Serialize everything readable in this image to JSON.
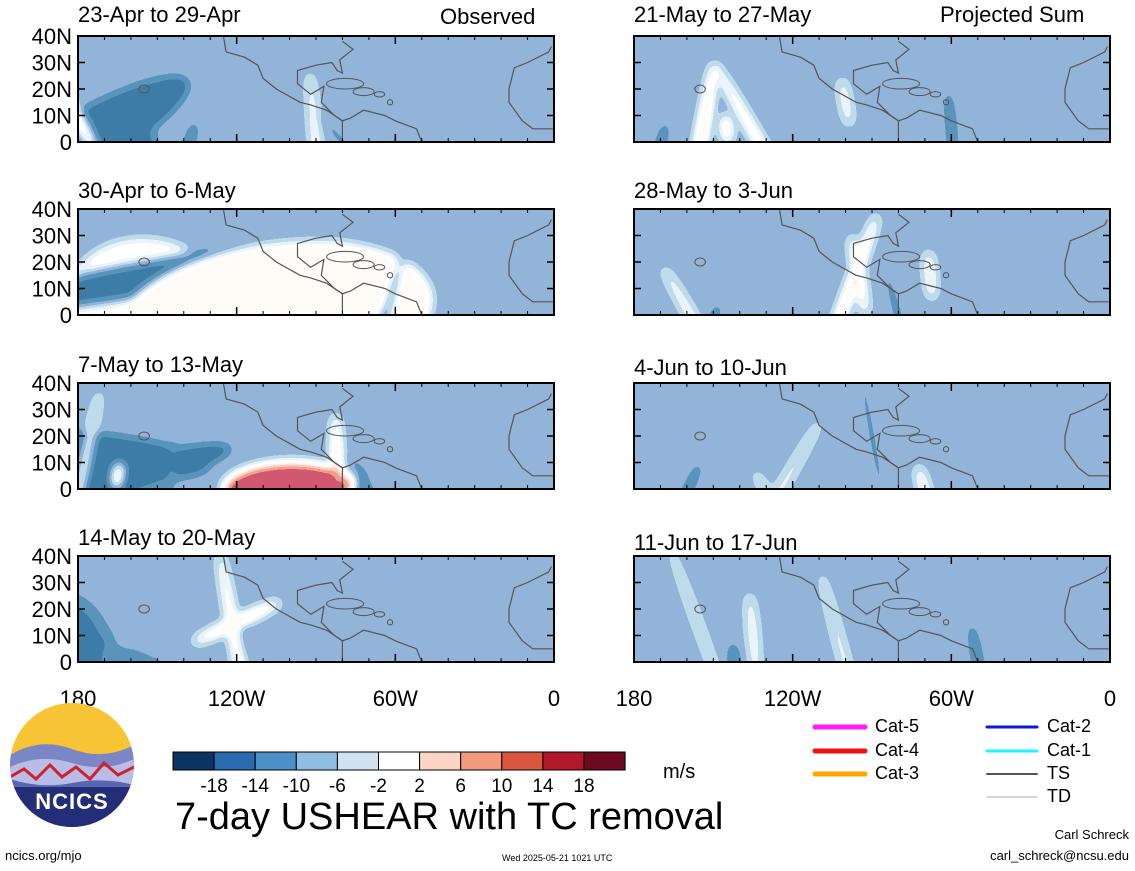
{
  "chart_data": {
    "type": "heatmap",
    "title": "7-day USHEAR with TC removal",
    "units": "m/s",
    "colorbar": {
      "tick_labels": [
        "-18",
        "-14",
        "-10",
        "-6",
        "-2",
        "2",
        "6",
        "10",
        "14",
        "18"
      ],
      "colors": [
        "#0b3463",
        "#2a6aaf",
        "#4a8fc8",
        "#8fbfe0",
        "#cfe3f1",
        "#ffffff",
        "#fbd6c4",
        "#f19a7d",
        "#d9573f",
        "#b0182b",
        "#6e0a1f"
      ]
    },
    "lon_ticks": [
      "180",
      "120W",
      "60W",
      "0"
    ],
    "lat_ticks": [
      "40N",
      "30N",
      "20N",
      "10N",
      "0"
    ],
    "columns": [
      {
        "label": "Observed",
        "panels": [
          {
            "period": "23-Apr to 29-Apr",
            "blobs": [
              [
                150,
                -1,
                48,
                22,
                0,
                -14
              ],
              [
                -1,
                0,
                30,
                22,
                0,
                -10
              ],
              [
                65,
                14,
                0,
                40,
                16,
                -8
              ],
              [
                15,
                -1,
                0,
                18,
                42,
                -12
              ],
              [
                -30,
                15,
                0,
                44,
                -4,
                18
              ],
              [
                -20,
                -1,
                0,
                100,
                0,
                -6
              ],
              [
                -5,
                -1,
                0,
                55,
                90,
                10
              ],
              [
                -40,
                0,
                0,
                30,
                100,
                -5
              ]
            ]
          },
          {
            "period": "30-Apr to 6-May",
            "blobs": [
              [
                25,
                -1,
                42,
                10,
                35,
                22
              ],
              [
                20,
                5,
                0,
                34,
                66,
                -14
              ],
              [
                10,
                -1,
                0,
                22,
                105,
                -8
              ],
              [
                25,
                -1,
                35,
                56,
                30,
                10
              ],
              [
                -10,
                14,
                70,
                14,
                28,
                -10
              ],
              [
                -8,
                -1,
                60,
                55,
                74,
                12
              ],
              [
                15,
                5,
                0,
                37,
                118,
                -8
              ],
              [
                20,
                -1,
                0,
                10,
                115,
                -6
              ]
            ]
          },
          {
            "period": "7-May to 13-May",
            "blobs": [
              [
                -15,
                0,
                60,
                14,
                0,
                -14
              ],
              [
                5,
                13,
                50,
                18,
                0,
                -12
              ],
              [
                -1,
                0,
                25,
                20,
                80,
                20
              ],
              [
                25,
                -1,
                0,
                18,
                105,
                -10
              ],
              [
                -1,
                -1,
                0,
                58,
                98,
                18
              ],
              [
                10,
                5,
                0,
                10,
                15,
                16
              ],
              [
                5,
                5,
                0,
                28,
                35,
                -6
              ],
              [
                -25,
                -1,
                0,
                30,
                110,
                -8
              ],
              [
                12,
                -2,
                0,
                80,
                0,
                10
              ]
            ]
          },
          {
            "period": "14-May to 20-May",
            "blobs": [
              [
                50,
                -1,
                35,
                15,
                0,
                -12
              ],
              [
                30,
                -1,
                100,
                5,
                26,
                12
              ],
              [
                65,
                15,
                0,
                36,
                60,
                16
              ],
              [
                5,
                5,
                0,
                18,
                62,
                -6
              ],
              [
                -10,
                5,
                0,
                74,
                60,
                14
              ],
              [
                20,
                -1,
                70,
                26,
                0,
                -6
              ],
              [
                -16,
                6,
                20,
                42,
                -8,
                -8
              ],
              [
                -30,
                -1,
                0,
                42,
                18,
                -8
              ]
            ]
          }
        ]
      },
      {
        "label": "Projected Sum",
        "panels": [
          {
            "period": "21-May to 27-May",
            "blobs": [
              [
                15,
                -1,
                0,
                18,
                10,
                -10
              ],
              [
                10,
                -1,
                0,
                62,
                25,
                18
              ],
              [
                -10,
                15,
                0,
                18,
                80,
                10
              ],
              [
                -30,
                -1,
                0,
                70,
                48,
                14
              ],
              [
                -5,
                5,
                0,
                30,
                120,
                -10
              ],
              [
                -5,
                5,
                0,
                10,
                35,
                16
              ]
            ]
          },
          {
            "period": "28-May to 3-Jun",
            "blobs": [
              [
                25,
                -1,
                0,
                12,
                30,
                -8
              ],
              [
                20,
                5,
                0,
                70,
                80,
                16
              ],
              [
                -10,
                15,
                0,
                30,
                85,
                14
              ],
              [
                -30,
                -1,
                0,
                44,
                22,
                10
              ],
              [
                -15,
                -1,
                0,
                42,
                100,
                -6
              ],
              [
                -5,
                15,
                0,
                18,
                112,
                12
              ]
            ]
          },
          {
            "period": "4-Jun to 10-Jun",
            "blobs": [
              [
                25,
                -1,
                0,
                25,
                20,
                -10
              ],
              [
                30,
                -1,
                0,
                62,
                55,
                8
              ],
              [
                -15,
                -1,
                0,
                20,
                110,
                12
              ],
              [
                -30,
                -1,
                0,
                18,
                50,
                6
              ],
              [
                -10,
                20,
                0,
                70,
                90,
                -5
              ]
            ]
          },
          {
            "period": "11-Jun to 17-Jun",
            "blobs": [
              [
                -10,
                0,
                0,
                30,
                130,
                -12
              ],
              [
                -5,
                -1,
                0,
                17,
                38,
                -14
              ],
              [
                -15,
                -1,
                0,
                72,
                80,
                8
              ],
              [
                -20,
                12,
                0,
                68,
                25,
                6
              ],
              [
                -5,
                10,
                0,
                32,
                45,
                10
              ]
            ]
          }
        ]
      }
    ]
  },
  "tc_legend": [
    {
      "label": "Cat-5",
      "color": "#ff1aff",
      "width": 5
    },
    {
      "label": "Cat-4",
      "color": "#ee1111",
      "width": 5
    },
    {
      "label": "Cat-3",
      "color": "#ffa500",
      "width": 5
    },
    {
      "label": "Cat-2",
      "color": "#0a1ad8",
      "width": 3
    },
    {
      "label": "Cat-1",
      "color": "#1ff5ff",
      "width": 3
    },
    {
      "label": "TS",
      "color": "#555555",
      "width": 2
    },
    {
      "label": "TD",
      "color": "#aaaaaa",
      "width": 1
    }
  ],
  "logo": {
    "text": "NCICS"
  },
  "footer": {
    "site": "ncics.org/mjo",
    "timestamp": "Wed 2025-05-21 1021 UTC",
    "author": "Carl Schreck",
    "email": "carl_schreck@ncsu.edu"
  }
}
